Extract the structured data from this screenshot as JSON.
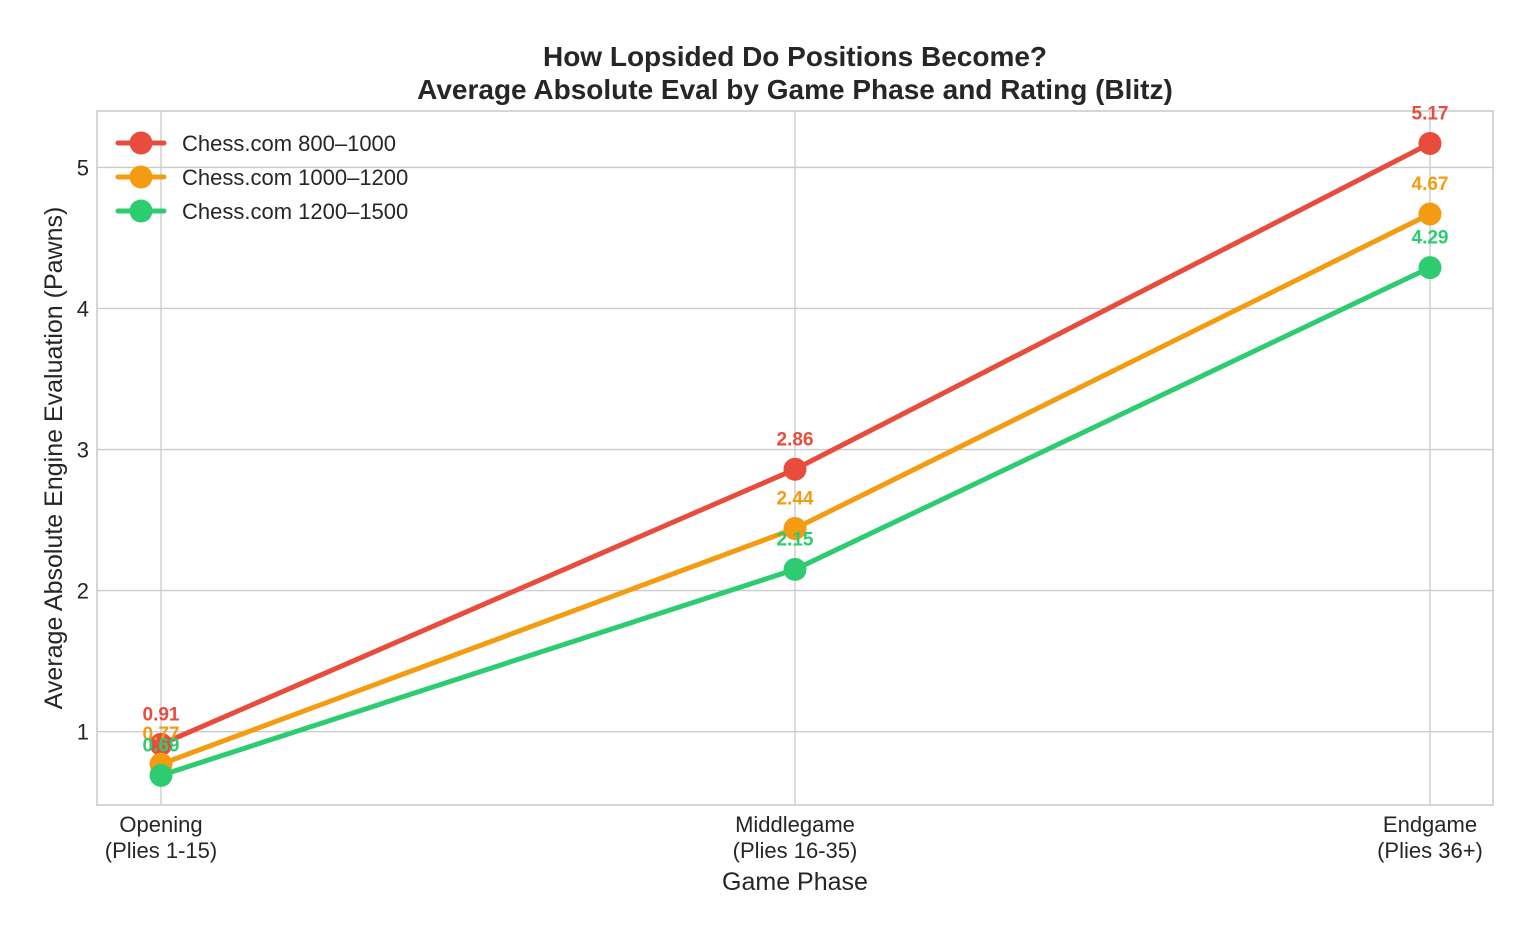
{
  "chart_data": {
    "type": "line",
    "title": [
      "How Lopsided Do Positions Become?",
      "Average Absolute Eval by Game Phase and Rating (Blitz)"
    ],
    "xlabel": "Game Phase",
    "ylabel": "Average Absolute Engine Evaluation (Pawns)",
    "categories": [
      [
        "Opening",
        "(Plies 1-15)"
      ],
      [
        "Middlegame",
        "(Plies 16-35)"
      ],
      [
        "Endgame",
        "(Plies 36+)"
      ]
    ],
    "ylim": [
      0.48,
      5.4
    ],
    "yticks": [
      "1",
      "2",
      "3",
      "4",
      "5"
    ],
    "grid": true,
    "legend_position": "top-left",
    "series": [
      {
        "name": "Chess.com 800–1000",
        "color": "#e74c3c",
        "values": [
          0.91,
          2.86,
          5.17
        ],
        "labels": [
          "0.91",
          "2.86",
          "5.17"
        ]
      },
      {
        "name": "Chess.com 1000–1200",
        "color": "#f39c12",
        "values": [
          0.77,
          2.44,
          4.67
        ],
        "labels": [
          "0.77",
          "2.44",
          "4.67"
        ]
      },
      {
        "name": "Chess.com 1200–1500",
        "color": "#2ecc71",
        "values": [
          0.69,
          2.15,
          4.29
        ],
        "labels": [
          "0.69",
          "2.15",
          "4.29"
        ]
      }
    ]
  }
}
